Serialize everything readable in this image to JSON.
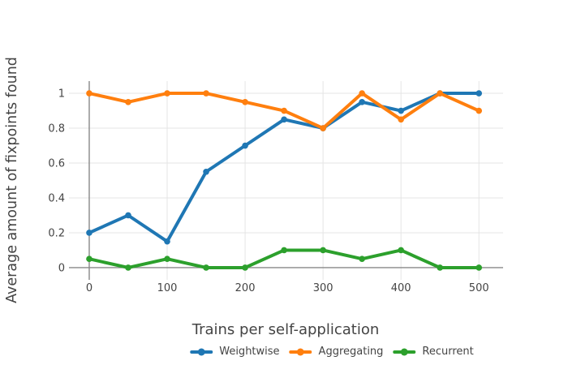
{
  "chart_data": {
    "type": "line",
    "title": "",
    "xlabel": "Trains per self-application",
    "ylabel": "Average amount of fixpoints found",
    "x": [
      0,
      50,
      100,
      150,
      200,
      250,
      300,
      350,
      400,
      450,
      500
    ],
    "series": [
      {
        "name": "Weightwise",
        "color": "#1f77b4",
        "values": [
          0.2,
          0.3,
          0.15,
          0.55,
          0.7,
          0.85,
          0.8,
          0.95,
          0.9,
          1.0,
          1.0
        ]
      },
      {
        "name": "Aggregating",
        "color": "#ff7f0e",
        "values": [
          1.0,
          0.95,
          1.0,
          1.0,
          0.95,
          0.9,
          0.8,
          1.0,
          0.85,
          1.0,
          0.9
        ]
      },
      {
        "name": "Recurrent",
        "color": "#2ca02c",
        "values": [
          0.05,
          0.0,
          0.05,
          0.0,
          0.0,
          0.1,
          0.1,
          0.05,
          0.1,
          0.0,
          0.0
        ]
      }
    ],
    "xticks": [
      0,
      100,
      200,
      300,
      400,
      500
    ],
    "yticks": [
      0,
      0.2,
      0.4,
      0.6,
      0.8,
      1
    ],
    "xlim": [
      -26,
      531
    ],
    "ylim": [
      -0.07,
      1.07
    ],
    "grid": true,
    "legend_position": "bottom-center"
  },
  "style": {
    "grid_color": "#e5e5e5",
    "zeroline_color": "#888888",
    "text_color": "#444444",
    "background": "#ffffff"
  }
}
